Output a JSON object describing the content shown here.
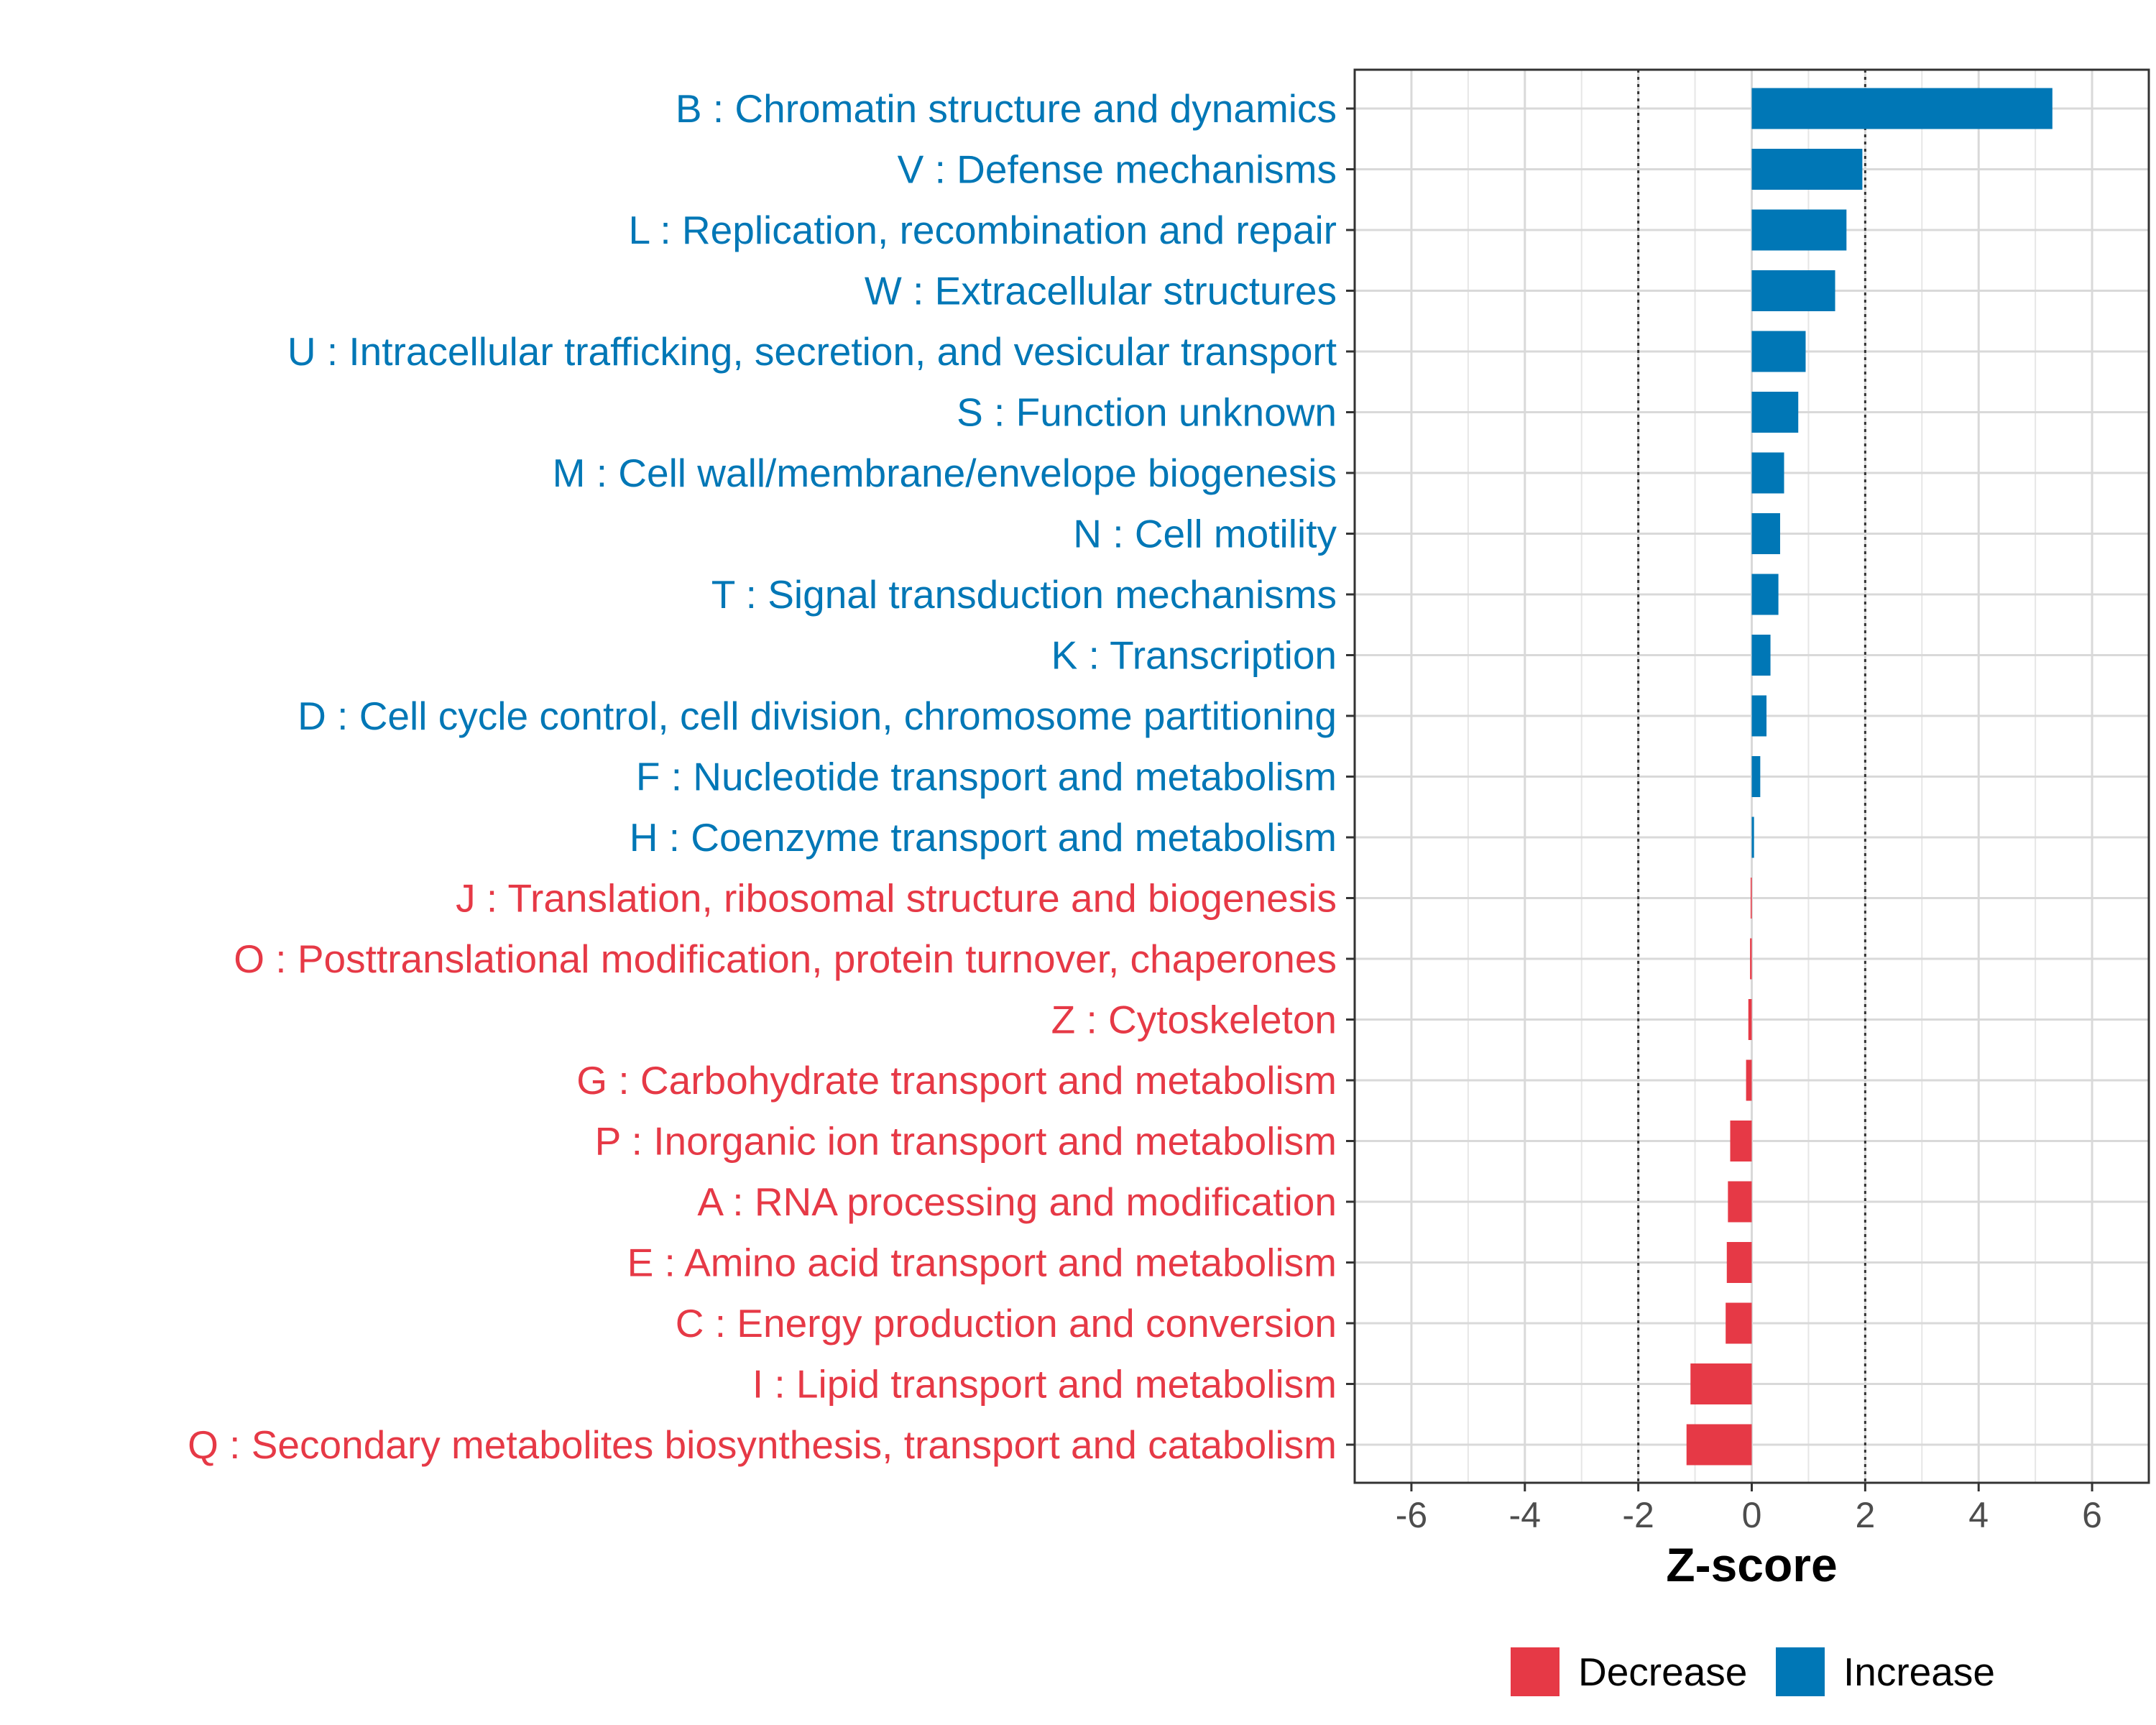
{
  "chart_data": {
    "type": "bar",
    "orientation": "horizontal",
    "xlabel": "Z-score",
    "xlim": [
      -7,
      7
    ],
    "xticks": [
      -6,
      -4,
      -2,
      0,
      2,
      4,
      6
    ],
    "xtick_labels": [
      "-6",
      "-4",
      "-2",
      "0",
      "2",
      "4",
      "6"
    ],
    "reference_lines": [
      -2,
      2
    ],
    "grid": true,
    "categories": [
      "B : Chromatin structure and dynamics",
      "V : Defense mechanisms",
      "L : Replication, recombination and repair",
      "W : Extracellular structures",
      "U : Intracellular trafficking, secretion, and vesicular transport",
      "S : Function unknown",
      "M : Cell wall/membrane/envelope biogenesis",
      "N : Cell motility",
      "T : Signal transduction mechanisms",
      "K : Transcription",
      "D : Cell cycle control, cell division, chromosome partitioning",
      "F : Nucleotide transport and metabolism",
      "H : Coenzyme transport and metabolism",
      "J : Translation, ribosomal structure and biogenesis",
      "O : Posttranslational modification, protein turnover, chaperones",
      "Z : Cytoskeleton",
      "G : Carbohydrate transport and metabolism",
      "P : Inorganic ion transport and metabolism",
      "A : RNA processing and modification",
      "E : Amino acid transport and metabolism",
      "C : Energy production and conversion",
      "I : Lipid transport and metabolism",
      "Q : Secondary metabolites biosynthesis, transport and catabolism"
    ],
    "values": [
      5.3,
      1.95,
      1.67,
      1.47,
      0.95,
      0.82,
      0.57,
      0.5,
      0.47,
      0.33,
      0.26,
      0.15,
      0.04,
      -0.02,
      -0.03,
      -0.06,
      -0.1,
      -0.38,
      -0.42,
      -0.44,
      -0.46,
      -1.08,
      -1.15
    ],
    "direction": [
      "Increase",
      "Increase",
      "Increase",
      "Increase",
      "Increase",
      "Increase",
      "Increase",
      "Increase",
      "Increase",
      "Increase",
      "Increase",
      "Increase",
      "Increase",
      "Decrease",
      "Decrease",
      "Decrease",
      "Decrease",
      "Decrease",
      "Decrease",
      "Decrease",
      "Decrease",
      "Decrease",
      "Decrease"
    ],
    "legend": {
      "position": "bottom-right",
      "entries": [
        {
          "label": "Decrease",
          "color": "#E63946"
        },
        {
          "label": "Increase",
          "color": "#0077B6"
        }
      ]
    },
    "colors": {
      "Increase": "#0077B6",
      "Decrease": "#E63946"
    }
  }
}
